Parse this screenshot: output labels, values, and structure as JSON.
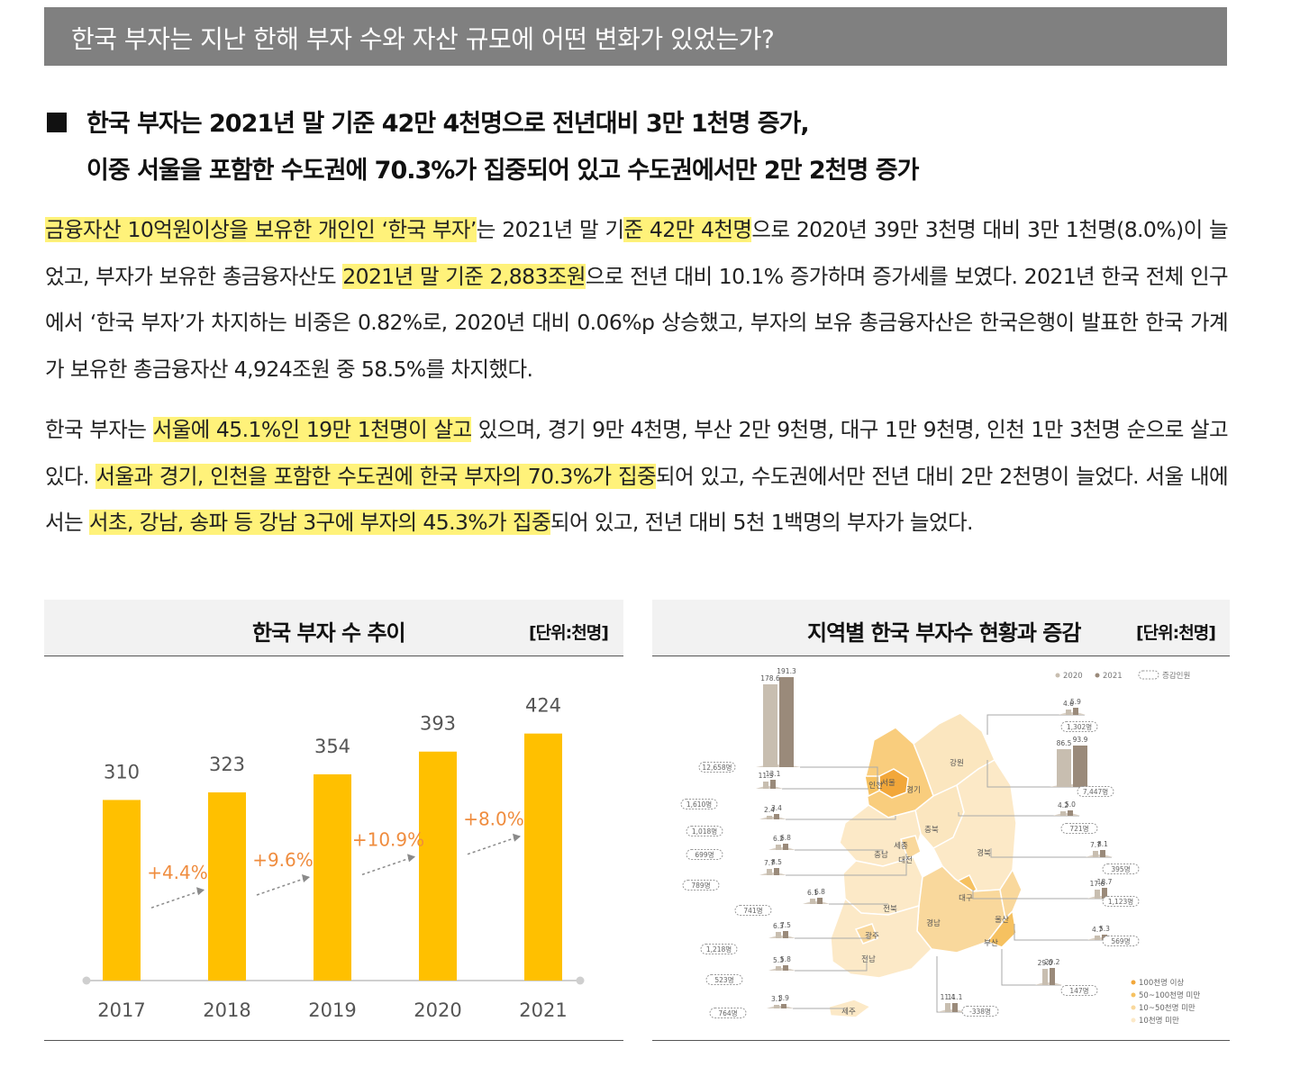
{
  "banner": {
    "title": "한국 부자는 지난 한해 부자 수와 자산 규모에 어떤 변화가 있었는가?"
  },
  "headline": {
    "line1": "한국 부자는 2021년 말 기준 42만 4천명으로 전년대비 3만 1천명 증가,",
    "line2": "이중 서울을 포함한 수도권에 70.3%가 집중되어 있고 수도권에서만 2만 2천명 증가"
  },
  "paragraph1": {
    "h1": "금융자산 10억원이상을 보유한 개인인 ‘한국 부자’",
    "t1": "는 2021년 말 기",
    "h2": "준 42만 4천명",
    "t2": "으로 2020년 39만 3천명 대비 3만 1천명(8.0%)이 늘었고, 부자가 보유한 총금융자산도 ",
    "h3": "2021년 말 기준 2,883조원",
    "t3": "으로 전년 대비 10.1% 증가하며 증가세를 보였다. 2021년 한국 전체 인구에서 ‘한국 부자’가 차지하는 비중은 0.82%로, 2020년 대비 0.06%p 상승했고, 부자의 보유 총금융자산은 한국은행이 발표한 한국 가계가 보유한 총금융자산 4,924조원 중 58.5%를 차지했다."
  },
  "paragraph2": {
    "t0": "한국 부자는 ",
    "h1": "서울에 45.1%인 19만 1천명이 살고",
    "t1": " 있으며, 경기 9만 4천명, 부산 2만 9천명, 대구 1만 9천명, 인천 1만 3천명 순으로 살고 있다. ",
    "h2": "서울과 경기, 인천을 포함한 수도권에 한국 부자의 70.3%가 집중",
    "t2": "되어 있고, 수도권에서만 전년 대비 2만 2천명이 늘었다. 서울 내에서는 ",
    "h3": "서초, 강남, 송파 등 강남 3구에 부자의 45.3%가 집중",
    "t3": "되어 있고, 전년 대비 5천 1백명의 부자가 늘었다."
  },
  "left_chart": {
    "title": "한국 부자 수 추이",
    "unit": "[단위:천명]"
  },
  "right_chart": {
    "title": "지역별 한국 부자수 현황과 증감",
    "unit": "[단위:천명]",
    "legend_top": [
      "2020",
      "2021",
      "증감인원"
    ],
    "legend_bottom": [
      "100천명 이상",
      "50~100천명 미만",
      "10~50천명 미만",
      "10천명 미만"
    ],
    "region_labels": [
      "인천",
      "서울",
      "경기",
      "강원",
      "충북",
      "충남",
      "세종",
      "대전",
      "경북",
      "대구",
      "전북",
      "경남",
      "울산",
      "부산",
      "광주",
      "전남",
      "제주"
    ]
  },
  "chart_data": [
    {
      "type": "bar",
      "title": "한국 부자 수 추이",
      "unit": "[단위:천명]",
      "categories": [
        "2017",
        "2018",
        "2019",
        "2020",
        "2021"
      ],
      "values": [
        310,
        323,
        354,
        393,
        424
      ],
      "growth_labels": [
        "+4.4%",
        "+9.6%",
        "+10.9%",
        "+8.0%"
      ],
      "ylim": [
        0,
        450
      ],
      "color": "#ffc000"
    },
    {
      "type": "bar",
      "title": "지역별 한국 부자수 현황과 증감",
      "unit": "[단위:천명]",
      "series": [
        {
          "name": "2020"
        },
        {
          "name": "2021"
        }
      ],
      "items": [
        {
          "v2020": "178.6",
          "v2021": "191.3",
          "change": "12,658명"
        },
        {
          "v2020": "11.5",
          "v2021": "13.1",
          "change": "1,610명"
        },
        {
          "v2020": "2.4",
          "v2021": "3.4",
          "change": "1,018명"
        },
        {
          "v2020": "6.2",
          "v2021": "6.8",
          "change": "699명"
        },
        {
          "v2020": "7.7",
          "v2021": "8.5",
          "change": "789명"
        },
        {
          "v2020": "6.1",
          "v2021": "6.8",
          "change": "741명"
        },
        {
          "v2020": "6.3",
          "v2021": "7.5",
          "change": "1,218명"
        },
        {
          "v2020": "5.3",
          "v2021": "5.8",
          "change": "523명"
        },
        {
          "v2020": "3.1",
          "v2021": "3.9",
          "change": "764명"
        },
        {
          "v2020": "4.6",
          "v2021": "5.9",
          "change": "1,302명"
        },
        {
          "v2020": "86.5",
          "v2021": "93.9",
          "change": "7,447명"
        },
        {
          "v2020": "4.2",
          "v2021": "5.0",
          "change": "721명"
        },
        {
          "v2020": "7.7",
          "v2021": "8.1",
          "change": "395명"
        },
        {
          "v2020": "17.6",
          "v2021": "18.7",
          "change": "1,123명"
        },
        {
          "v2020": "4.7",
          "v2021": "5.3",
          "change": "569명"
        },
        {
          "v2020": "29.0",
          "v2021": "29.2",
          "change": "147명"
        },
        {
          "v2020": "11.4",
          "v2021": "11.1",
          "change": "-338명"
        }
      ]
    }
  ]
}
